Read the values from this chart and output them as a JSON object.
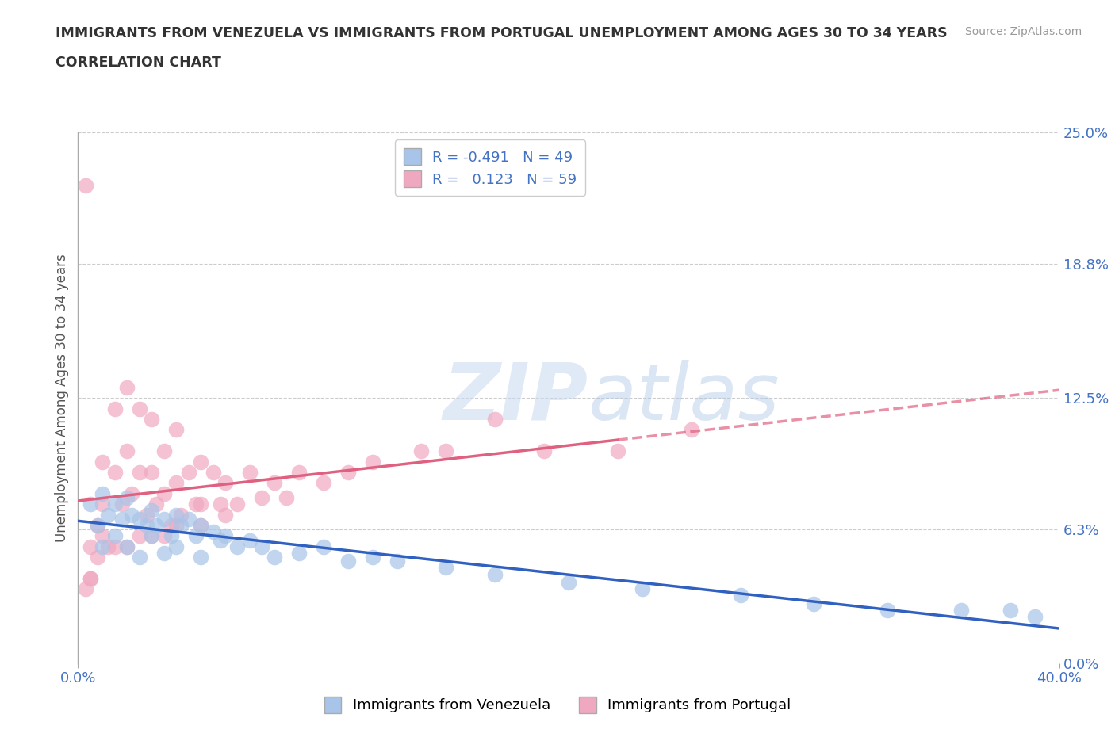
{
  "title_line1": "IMMIGRANTS FROM VENEZUELA VS IMMIGRANTS FROM PORTUGAL UNEMPLOYMENT AMONG AGES 30 TO 34 YEARS",
  "title_line2": "CORRELATION CHART",
  "source": "Source: ZipAtlas.com",
  "ylabel": "Unemployment Among Ages 30 to 34 years",
  "xlim": [
    0.0,
    0.4
  ],
  "ylim": [
    0.0,
    0.25
  ],
  "yticks": [
    0.0,
    0.063,
    0.125,
    0.188,
    0.25
  ],
  "ytick_labels": [
    "0.0%",
    "6.3%",
    "12.5%",
    "18.8%",
    "25.0%"
  ],
  "grid_color": "#cccccc",
  "background_color": "#ffffff",
  "watermark_zip": "ZIP",
  "watermark_atlas": "atlas",
  "legend_label1": "Immigrants from Venezuela",
  "legend_label2": "Immigrants from Portugal",
  "legend_R1": "-0.491",
  "legend_N1": "49",
  "legend_R2": "0.123",
  "legend_N2": "59",
  "color_venezuela": "#a8c4e8",
  "color_portugal": "#f0a8c0",
  "line_color_venezuela": "#3060c0",
  "line_color_portugal": "#e06080",
  "title_color": "#333333",
  "axis_label_color": "#555555",
  "tick_label_color": "#4472c4",
  "venezuela_x": [
    0.005,
    0.008,
    0.01,
    0.01,
    0.012,
    0.015,
    0.015,
    0.018,
    0.02,
    0.02,
    0.022,
    0.025,
    0.025,
    0.028,
    0.03,
    0.03,
    0.032,
    0.035,
    0.035,
    0.038,
    0.04,
    0.04,
    0.042,
    0.045,
    0.048,
    0.05,
    0.05,
    0.055,
    0.058,
    0.06,
    0.065,
    0.07,
    0.075,
    0.08,
    0.09,
    0.1,
    0.11,
    0.12,
    0.13,
    0.15,
    0.17,
    0.2,
    0.23,
    0.27,
    0.3,
    0.33,
    0.36,
    0.38,
    0.39
  ],
  "venezuela_y": [
    0.075,
    0.065,
    0.08,
    0.055,
    0.07,
    0.075,
    0.06,
    0.068,
    0.078,
    0.055,
    0.07,
    0.068,
    0.05,
    0.065,
    0.072,
    0.06,
    0.065,
    0.068,
    0.052,
    0.06,
    0.07,
    0.055,
    0.065,
    0.068,
    0.06,
    0.065,
    0.05,
    0.062,
    0.058,
    0.06,
    0.055,
    0.058,
    0.055,
    0.05,
    0.052,
    0.055,
    0.048,
    0.05,
    0.048,
    0.045,
    0.042,
    0.038,
    0.035,
    0.032,
    0.028,
    0.025,
    0.025,
    0.025,
    0.022
  ],
  "portugal_x": [
    0.003,
    0.005,
    0.005,
    0.008,
    0.01,
    0.01,
    0.012,
    0.015,
    0.015,
    0.018,
    0.02,
    0.02,
    0.022,
    0.025,
    0.025,
    0.028,
    0.03,
    0.03,
    0.032,
    0.035,
    0.035,
    0.038,
    0.04,
    0.04,
    0.042,
    0.045,
    0.048,
    0.05,
    0.05,
    0.055,
    0.058,
    0.06,
    0.065,
    0.07,
    0.075,
    0.08,
    0.085,
    0.09,
    0.1,
    0.11,
    0.12,
    0.14,
    0.15,
    0.17,
    0.19,
    0.22,
    0.25,
    0.005,
    0.003,
    0.008,
    0.01,
    0.015,
    0.02,
    0.025,
    0.03,
    0.035,
    0.04,
    0.05,
    0.06
  ],
  "portugal_y": [
    0.225,
    0.055,
    0.04,
    0.065,
    0.095,
    0.075,
    0.055,
    0.12,
    0.09,
    0.075,
    0.13,
    0.1,
    0.08,
    0.12,
    0.09,
    0.07,
    0.115,
    0.09,
    0.075,
    0.1,
    0.08,
    0.065,
    0.11,
    0.085,
    0.07,
    0.09,
    0.075,
    0.095,
    0.075,
    0.09,
    0.075,
    0.085,
    0.075,
    0.09,
    0.078,
    0.085,
    0.078,
    0.09,
    0.085,
    0.09,
    0.095,
    0.1,
    0.1,
    0.115,
    0.1,
    0.1,
    0.11,
    0.04,
    0.035,
    0.05,
    0.06,
    0.055,
    0.055,
    0.06,
    0.06,
    0.06,
    0.065,
    0.065,
    0.07
  ]
}
